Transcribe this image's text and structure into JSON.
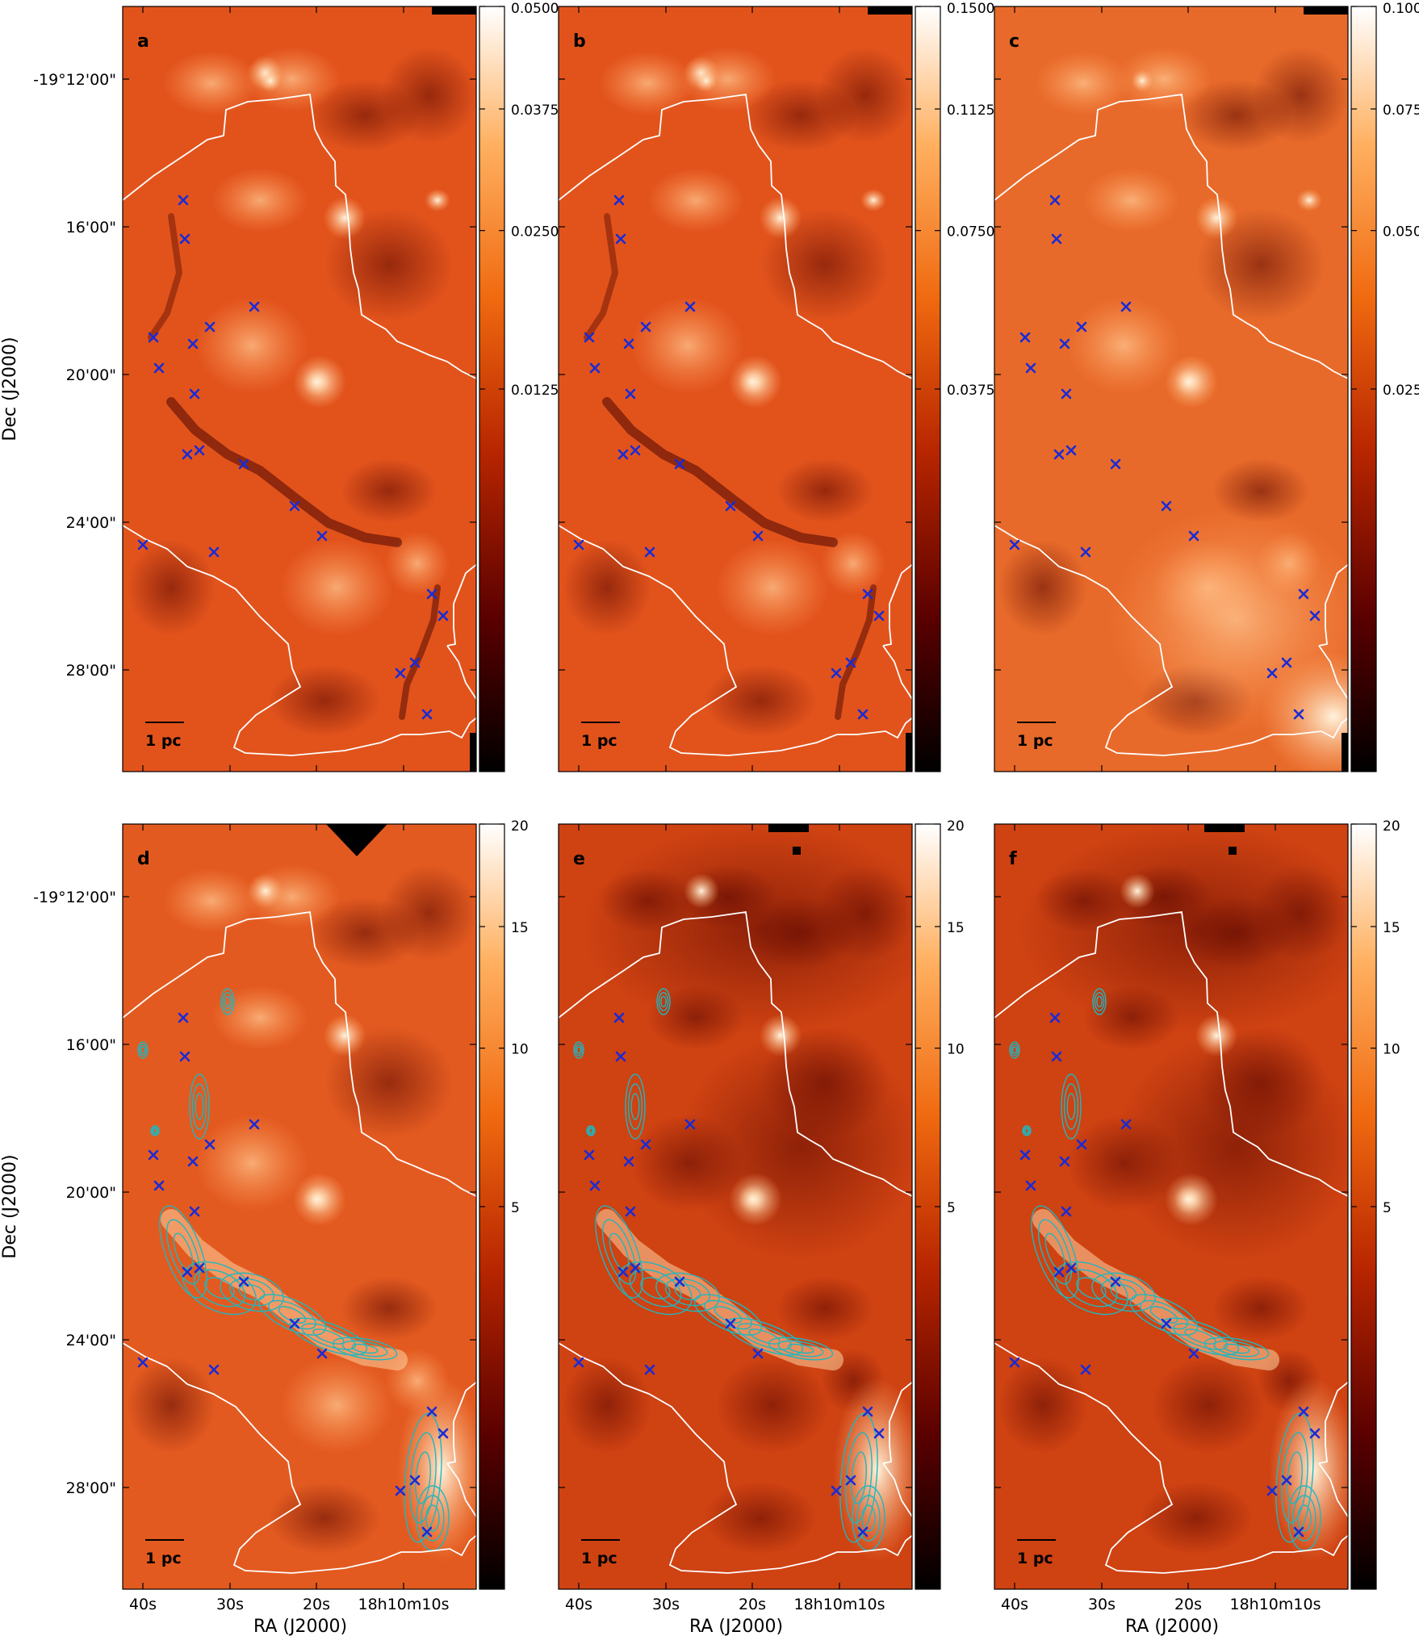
{
  "figure": {
    "panels": [
      {
        "label": "a",
        "cbar_ticks": [
          "0.0500",
          "0.0375",
          "0.0250",
          "0.0125"
        ],
        "cbar_values": [
          0.05,
          0.0375,
          0.025,
          0.0125
        ],
        "cbar_max": 0.05,
        "cbar_scale": "sqrt"
      },
      {
        "label": "b",
        "cbar_ticks": [
          "0.1500",
          "0.1125",
          "0.0750",
          "0.0375"
        ],
        "cbar_values": [
          0.15,
          0.1125,
          0.075,
          0.0375
        ],
        "cbar_max": 0.15,
        "cbar_scale": "sqrt"
      },
      {
        "label": "c",
        "cbar_ticks": [
          "0.100",
          "0.075",
          "0.050",
          "0.025"
        ],
        "cbar_values": [
          0.1,
          0.075,
          0.05,
          0.025
        ],
        "cbar_max": 0.1,
        "cbar_scale": "sqrt"
      },
      {
        "label": "d",
        "cbar_ticks": [
          "20",
          "15",
          "10",
          "5"
        ],
        "cbar_values": [
          20,
          15,
          10,
          5
        ],
        "cbar_max": 20,
        "cbar_scale": "sqrt"
      },
      {
        "label": "e",
        "cbar_ticks": [
          "20",
          "15",
          "10",
          "5"
        ],
        "cbar_values": [
          20,
          15,
          10,
          5
        ],
        "cbar_max": 20,
        "cbar_scale": "sqrt"
      },
      {
        "label": "f",
        "cbar_ticks": [
          "20",
          "15",
          "10",
          "5"
        ],
        "cbar_values": [
          20,
          15,
          10,
          5
        ],
        "cbar_max": 20,
        "cbar_scale": "sqrt"
      }
    ],
    "ylabel": "Dec (J2000)",
    "xlabel": "RA (J2000)",
    "y_ticks": [
      "-19°12'00\"",
      "16'00\"",
      "20'00\"",
      "24'00\"",
      "28'00\""
    ],
    "x_ticks": [
      "40s",
      "30s",
      "20s",
      "18h10m10s"
    ],
    "scale_bar_label": "1 pc",
    "colors": {
      "map_base": "#e2531c",
      "map_dark": "#3a0000",
      "map_bright": "#ffe2bf",
      "outline": "#ffffff",
      "markers": "#1a2bd6",
      "contours": "#1fb7bf"
    }
  },
  "chart_data": [
    {
      "type": "heatmap",
      "panel": "a",
      "colorbar_max": 0.05,
      "colorbar_ticks": [
        0.0125,
        0.025,
        0.0375,
        0.05
      ],
      "xlabel": "",
      "ylabel": "Dec (J2000)"
    },
    {
      "type": "heatmap",
      "panel": "b",
      "colorbar_max": 0.15,
      "colorbar_ticks": [
        0.0375,
        0.075,
        0.1125,
        0.15
      ],
      "xlabel": "",
      "ylabel": ""
    },
    {
      "type": "heatmap",
      "panel": "c",
      "colorbar_max": 0.1,
      "colorbar_ticks": [
        0.025,
        0.05,
        0.075,
        0.1
      ],
      "xlabel": "",
      "ylabel": ""
    },
    {
      "type": "heatmap",
      "panel": "d",
      "colorbar_max": 20,
      "colorbar_ticks": [
        5,
        10,
        15,
        20
      ],
      "xlabel": "RA (J2000)",
      "ylabel": "Dec (J2000)"
    },
    {
      "type": "heatmap",
      "panel": "e",
      "colorbar_max": 20,
      "colorbar_ticks": [
        5,
        10,
        15,
        20
      ],
      "xlabel": "RA (J2000)",
      "ylabel": ""
    },
    {
      "type": "heatmap",
      "panel": "f",
      "colorbar_max": 20,
      "colorbar_ticks": [
        5,
        10,
        15,
        20
      ],
      "xlabel": "RA (J2000)",
      "ylabel": ""
    }
  ]
}
